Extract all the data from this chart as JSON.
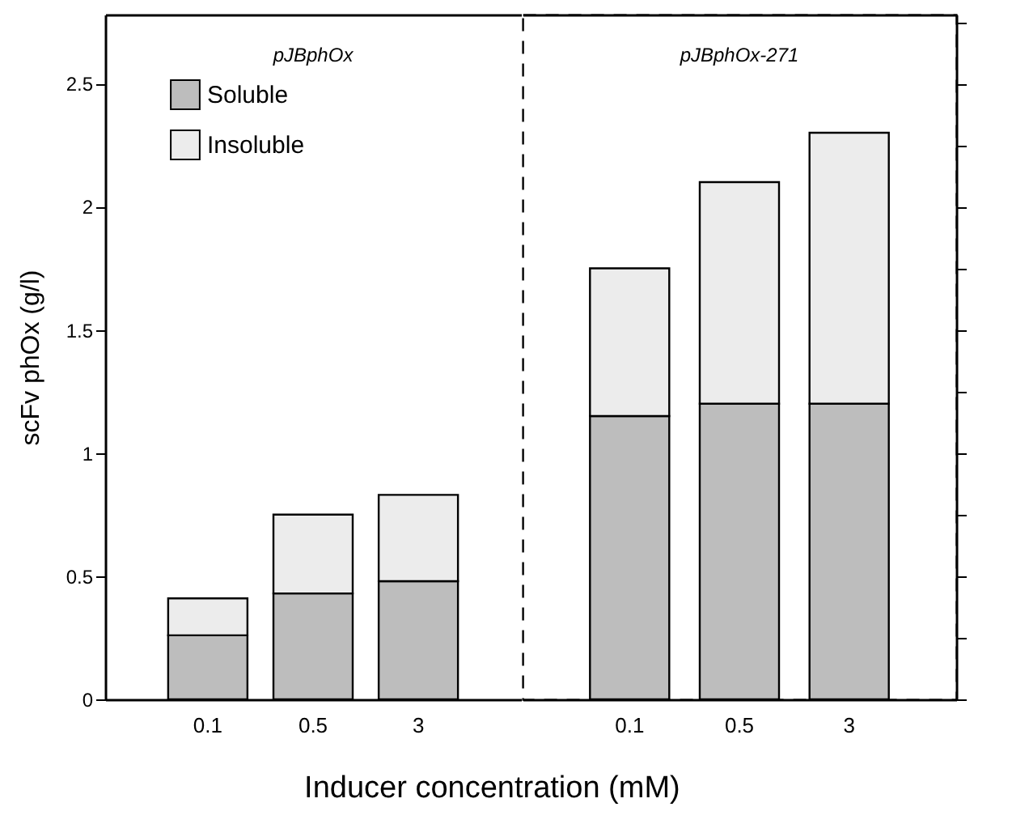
{
  "chart_data": [
    {
      "type": "bar",
      "title": "pJBphOx",
      "ylabel": "scFv phOx (g/l)",
      "xlabel": "Inducer concentration (mM)",
      "categories": [
        "0.1",
        "0.5",
        "3"
      ],
      "stacked": true,
      "legend": "top left",
      "series": [
        {
          "name": "Soluble",
          "color": "#bdbdbd",
          "values": [
            0.26,
            0.43,
            0.48
          ]
        },
        {
          "name": "Insoluble",
          "color": "#ececec",
          "values": [
            0.15,
            0.32,
            0.35
          ]
        }
      ],
      "ylim": [
        0,
        2.78
      ],
      "yticks": [
        0,
        0.5,
        1,
        1.5,
        2,
        2.5
      ]
    },
    {
      "type": "bar",
      "title": "pJBphOx-271",
      "categories": [
        "0.1",
        "0.5",
        "3"
      ],
      "stacked": true,
      "tick_labels": "x",
      "series": [
        {
          "color": "#bdbdbd",
          "values": [
            1.15,
            1.2,
            1.2
          ]
        },
        {
          "color": "#ececec",
          "values": [
            0.6,
            0.9,
            1.1
          ]
        }
      ],
      "ylim": [
        0,
        2.78
      ],
      "yticks": [
        {
          "value": 0,
          "label": null
        },
        {
          "value": 0.25,
          "label": null
        },
        {
          "value": 0.5,
          "label": null
        },
        {
          "value": 0.75,
          "label": null
        },
        {
          "value": 1,
          "label": null
        },
        {
          "value": 1.25,
          "label": null
        },
        {
          "value": 1.5,
          "label": null
        },
        {
          "value": 1.75,
          "label": null
        },
        {
          "value": 2,
          "label": null
        },
        {
          "value": 2.25,
          "label": null
        },
        {
          "value": 2.5,
          "label": null
        },
        {
          "value": 2.75,
          "label": null
        }
      ]
    }
  ]
}
